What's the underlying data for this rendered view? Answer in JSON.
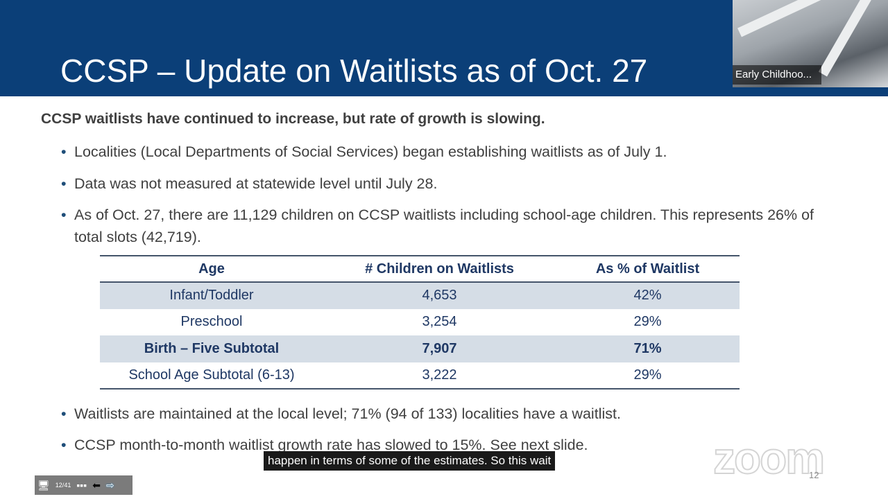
{
  "slide": {
    "title": "CCSP – Update on Waitlists as of Oct. 27",
    "lead": "CCSP waitlists have continued to increase, but rate of growth is slowing.",
    "bullets_top": [
      "Localities (Local Departments of Social Services) began establishing waitlists as of July 1.",
      "Data was not measured at statewide level until July 28.",
      "As of Oct. 27, there are 11,129 children on CCSP waitlists including school-age children. This represents 26% of total slots (42,719)."
    ],
    "table": {
      "headers": [
        "Age",
        "# Children on Waitlists",
        "As % of Waitlist"
      ],
      "rows": [
        [
          "Infant/Toddler",
          "4,653",
          "42%"
        ],
        [
          "Preschool",
          "3,254",
          "29%"
        ],
        [
          "Birth – Five Subtotal",
          "7,907",
          "71%"
        ],
        [
          "School Age Subtotal (6-13)",
          "3,222",
          "29%"
        ]
      ]
    },
    "bullets_bottom": [
      "Waitlists are maintained at the local level; 71% (94 of 133) localities have a waitlist.",
      "CCSP month-to-month waitlist growth rate has slowed to 15%. See next slide."
    ],
    "page_number": "12"
  },
  "video": {
    "participant_name": "Early Childhoo..."
  },
  "caption": "happen in terms of some of the estimates. So this wait",
  "watermark": "zoom",
  "toolbar": {
    "slide_current": "12",
    "slide_total": "41",
    "icons": [
      "end-show-icon",
      "slide-count",
      "more-icon",
      "previous-arrow-icon",
      "next-arrow-icon"
    ]
  },
  "colors": {
    "header": "#0b3f78",
    "table_text": "#1f3864",
    "shade": "#d5dde6"
  }
}
